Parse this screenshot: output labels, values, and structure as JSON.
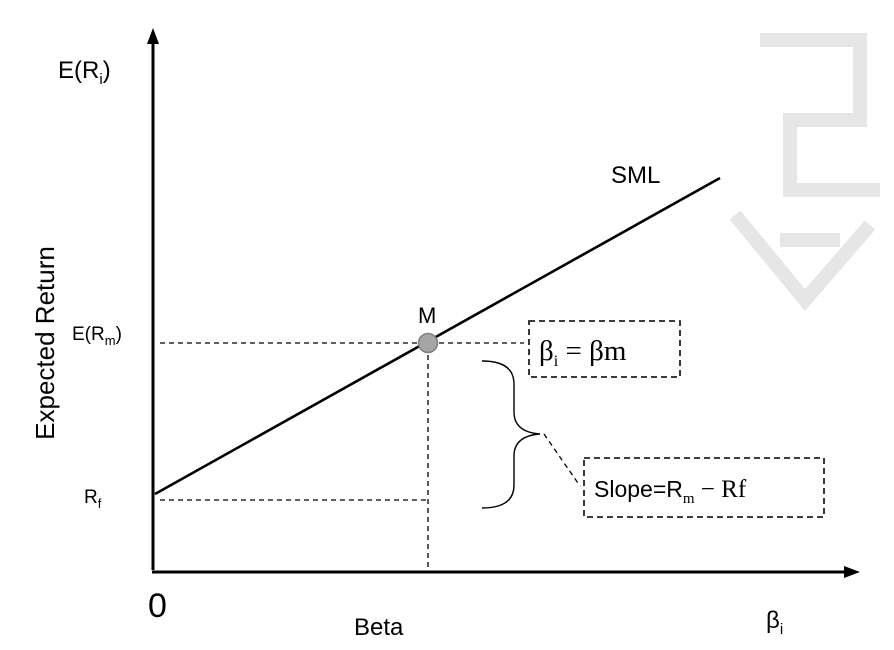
{
  "y_axis": {
    "symbol": "E(R",
    "symbol_sub": "i",
    "symbol_close": ")",
    "title": "Expected Return"
  },
  "x_axis": {
    "origin": "0",
    "title": "Beta",
    "symbol": "β",
    "symbol_sub": "i"
  },
  "ticks": {
    "erm": {
      "main": "E(R",
      "sub": "m",
      "close": ")"
    },
    "rf": {
      "main": "R",
      "sub": "f"
    }
  },
  "line": {
    "label": "SML"
  },
  "point": {
    "label": "M",
    "color": "#a6a6a6"
  },
  "beta_box": {
    "left": "β",
    "left_sub": "i",
    "rest": " = βm"
  },
  "slope_box": {
    "prefix": "Slope=R",
    "sub": "m",
    "rest": " − Rf"
  }
}
